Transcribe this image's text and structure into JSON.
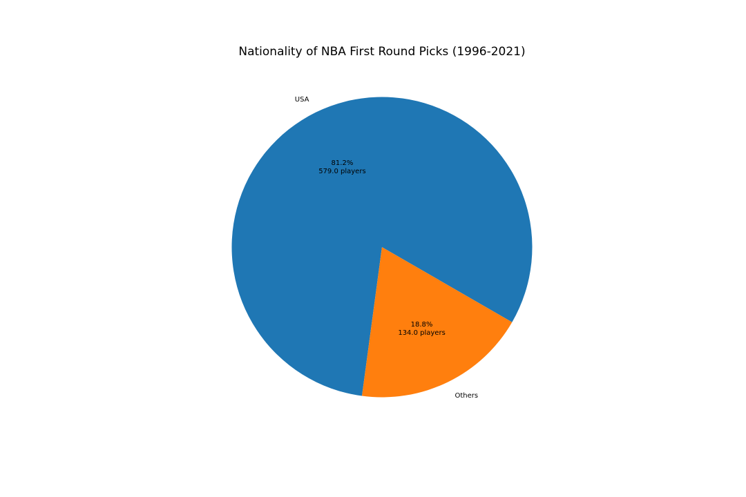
{
  "chart_data": {
    "type": "pie",
    "title": "Nationality of NBA First Round Picks (1996-2021)",
    "categories": [
      "USA",
      "Others"
    ],
    "values": [
      579,
      134
    ],
    "colors": [
      "#1f77b4",
      "#ff7f0e"
    ],
    "slices": [
      {
        "label": "USA",
        "value": 579,
        "percent_text": "81.2%",
        "count_text": "579.0 players",
        "color": "#1f77b4"
      },
      {
        "label": "Others",
        "value": 134,
        "percent_text": "18.8%",
        "count_text": "134.0 players",
        "color": "#ff7f0e"
      }
    ],
    "start_angle_deg": 330,
    "direction": "counterclockwise",
    "legend": "none"
  }
}
